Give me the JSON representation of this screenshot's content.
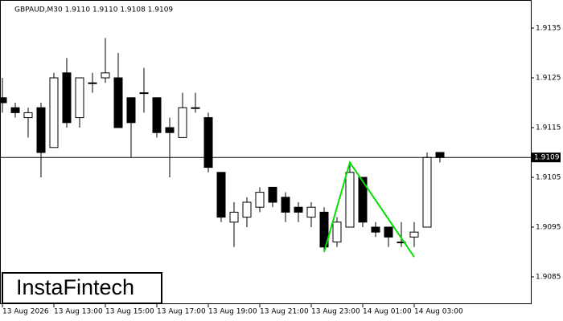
{
  "chart_data": {
    "type": "candlestick",
    "title": "GBPAUD,M30  1.9110 1.9110 1.9108 1.9109",
    "categories": [
      "13 Aug 2026",
      null,
      null,
      null,
      "13 Aug 13:00",
      null,
      null,
      null,
      "13 Aug 15:00",
      null,
      null,
      null,
      "13 Aug 17:00",
      null,
      null,
      null,
      "13 Aug 19:00",
      null,
      null,
      null,
      "13 Aug 21:00",
      null,
      null,
      null,
      "13 Aug 23:00",
      null,
      null,
      null,
      "14 Aug 01:00",
      null,
      null,
      null,
      "14 Aug 03:00",
      null,
      null
    ],
    "open": [
      1.9121,
      1.9119,
      1.9117,
      1.9119,
      1.9111,
      1.9126,
      1.9117,
      1.9124,
      1.9125,
      1.9125,
      1.9121,
      1.9122,
      1.9121,
      1.9115,
      1.9113,
      1.9119,
      1.9117,
      1.9106,
      1.9096,
      1.9097,
      1.9099,
      1.9103,
      1.9101,
      1.9099,
      1.9097,
      1.9098,
      1.9092,
      1.9095,
      1.9105,
      1.9095,
      1.9095,
      1.9092,
      1.9093,
      1.9095,
      1.911
    ],
    "high": [
      1.9125,
      1.912,
      1.9119,
      1.912,
      1.9126,
      1.9129,
      1.9125,
      1.9126,
      1.9133,
      1.913,
      1.9121,
      1.9127,
      1.9121,
      1.9117,
      1.9122,
      1.9122,
      1.9118,
      1.9106,
      1.91,
      1.9101,
      1.9103,
      1.9103,
      1.9102,
      1.91,
      1.91,
      1.9099,
      1.9097,
      1.9108,
      1.9105,
      1.9096,
      1.9095,
      1.9096,
      1.9096,
      1.911,
      1.911
    ],
    "low": [
      1.9118,
      1.9117,
      1.9113,
      1.9105,
      1.9111,
      1.9115,
      1.9115,
      1.9122,
      1.9124,
      1.9115,
      1.9109,
      1.9118,
      1.9113,
      1.9105,
      1.9113,
      1.9118,
      1.9106,
      1.9096,
      1.9091,
      1.9095,
      1.9098,
      1.9099,
      1.9096,
      1.9096,
      1.9095,
      1.909,
      1.9091,
      1.9095,
      1.9095,
      1.9093,
      1.9091,
      1.9091,
      1.9091,
      1.9095,
      1.9108
    ],
    "close": [
      1.912,
      1.9118,
      1.9118,
      1.911,
      1.9125,
      1.9116,
      1.9125,
      1.9124,
      1.9126,
      1.9115,
      1.9116,
      1.9122,
      1.9114,
      1.9114,
      1.9119,
      1.9119,
      1.9107,
      1.9097,
      1.9098,
      1.91,
      1.9102,
      1.91,
      1.9098,
      1.9098,
      1.9099,
      1.9091,
      1.9096,
      1.9106,
      1.9096,
      1.9094,
      1.9093,
      1.9092,
      1.9094,
      1.9109,
      1.9109
    ],
    "current_price": 1.9109,
    "pattern": {
      "color": "#00e000",
      "x": [
        25,
        27,
        32
      ],
      "values": [
        1.909,
        1.9108,
        1.9089
      ]
    },
    "ylim": [
      1.908,
      1.914
    ],
    "yticks": [
      1.9085,
      1.9095,
      1.9105,
      1.9115,
      1.9125,
      1.9135
    ],
    "logo": "InstaFintech"
  }
}
